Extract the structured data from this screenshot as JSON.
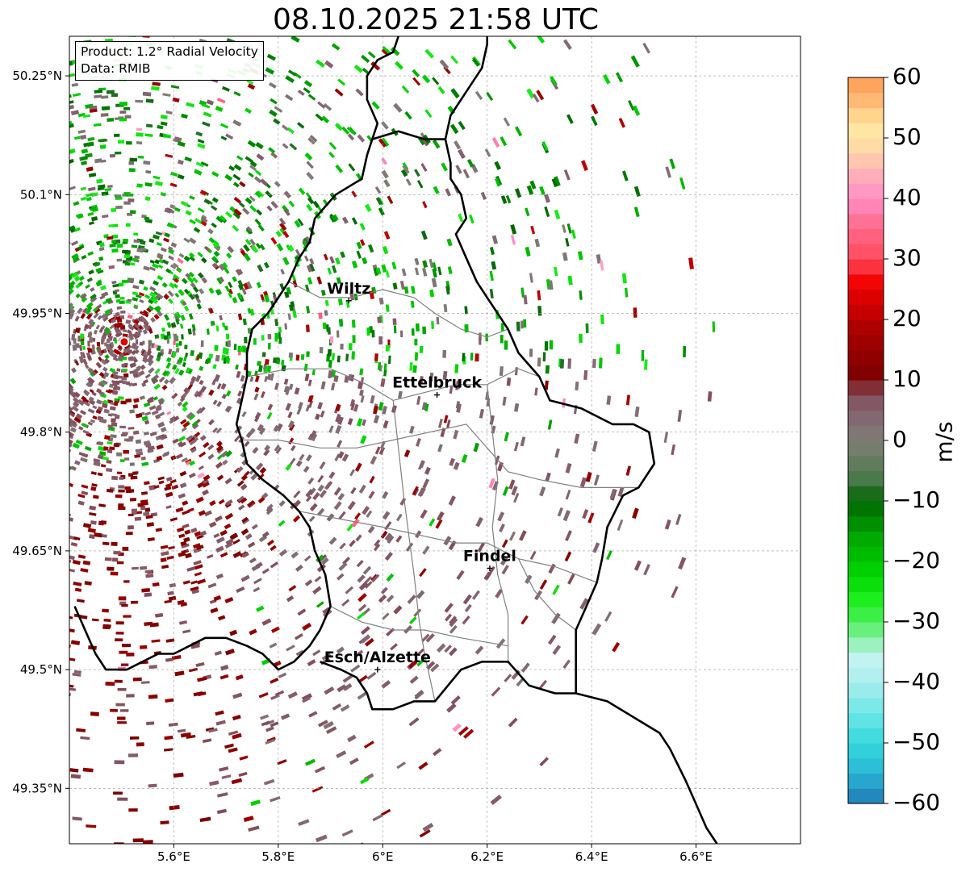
{
  "title": "08.10.2025 21:58 UTC",
  "info_box": {
    "line1": "Product: 1.2° Radial Velocity",
    "line2": "Data: RMIB"
  },
  "map_extent": {
    "lon_min": 5.4,
    "lon_max": 6.8,
    "lat_min": 49.28,
    "lat_max": 50.3
  },
  "axes": {
    "x_ticks": [
      {
        "value": 5.6,
        "label": "5.6°E"
      },
      {
        "value": 5.8,
        "label": "5.8°E"
      },
      {
        "value": 6.0,
        "label": "6°E"
      },
      {
        "value": 6.2,
        "label": "6.2°E"
      },
      {
        "value": 6.4,
        "label": "6.4°E"
      },
      {
        "value": 6.6,
        "label": "6.6°E"
      }
    ],
    "y_ticks": [
      {
        "value": 50.25,
        "label": "50.25°N"
      },
      {
        "value": 50.1,
        "label": "50.1°N"
      },
      {
        "value": 49.95,
        "label": "49.95°N"
      },
      {
        "value": 49.8,
        "label": "49.8°N"
      },
      {
        "value": 49.65,
        "label": "49.65°N"
      },
      {
        "value": 49.5,
        "label": "49.5°N"
      },
      {
        "value": 49.35,
        "label": "49.35°N"
      }
    ],
    "grid": true
  },
  "radar_site": {
    "lon": 5.505,
    "lat": 49.914
  },
  "cities": [
    {
      "name": "Wiltz",
      "lon": 5.935,
      "lat": 49.966
    },
    {
      "name": "Ettelbruck",
      "lon": 6.104,
      "lat": 49.847
    },
    {
      "name": "Findel",
      "lon": 6.205,
      "lat": 49.628
    },
    {
      "name": "Esch/Alzette",
      "lon": 5.99,
      "lat": 49.5
    }
  ],
  "colorbar": {
    "unit": "m/s",
    "min": -60,
    "max": 60,
    "ticks": [
      {
        "value": 60,
        "label": "60"
      },
      {
        "value": 50,
        "label": "50"
      },
      {
        "value": 40,
        "label": "40"
      },
      {
        "value": 30,
        "label": "30"
      },
      {
        "value": 20,
        "label": "20"
      },
      {
        "value": 10,
        "label": "10"
      },
      {
        "value": 0,
        "label": "0"
      },
      {
        "value": -10,
        "label": "−10"
      },
      {
        "value": -20,
        "label": "−20"
      },
      {
        "value": -30,
        "label": "−30"
      },
      {
        "value": -40,
        "label": "−40"
      },
      {
        "value": -50,
        "label": "−50"
      },
      {
        "value": -60,
        "label": "−60"
      }
    ],
    "stops": [
      {
        "value": -60,
        "color": "#1f78b4"
      },
      {
        "value": -55,
        "color": "#29b6d6"
      },
      {
        "value": -50,
        "color": "#33d9dd"
      },
      {
        "value": -45,
        "color": "#6fe6e6"
      },
      {
        "value": -40,
        "color": "#a8eeee"
      },
      {
        "value": -36,
        "color": "#c4f3f0"
      },
      {
        "value": -33,
        "color": "#8ff0b0"
      },
      {
        "value": -30,
        "color": "#4cef5a"
      },
      {
        "value": -26,
        "color": "#1aee1a"
      },
      {
        "value": -22,
        "color": "#00d400"
      },
      {
        "value": -16,
        "color": "#00a800"
      },
      {
        "value": -10,
        "color": "#006600"
      },
      {
        "value": -6,
        "color": "#4f7a4f"
      },
      {
        "value": 0,
        "color": "#7f7f75"
      },
      {
        "value": 5,
        "color": "#846070"
      },
      {
        "value": 8,
        "color": "#854a55"
      },
      {
        "value": 10,
        "color": "#7a0000"
      },
      {
        "value": 18,
        "color": "#a80000"
      },
      {
        "value": 26,
        "color": "#f20000"
      },
      {
        "value": 30,
        "color": "#ff4a5c"
      },
      {
        "value": 36,
        "color": "#ff6f92"
      },
      {
        "value": 40,
        "color": "#ff8fc8"
      },
      {
        "value": 44,
        "color": "#ffb0b8"
      },
      {
        "value": 48,
        "color": "#ffd8a8"
      },
      {
        "value": 52,
        "color": "#ffe9a0"
      },
      {
        "value": 56,
        "color": "#ffbb77"
      },
      {
        "value": 60,
        "color": "#ff9a50"
      }
    ]
  },
  "boundaries": {
    "country_border": [
      [
        6.03,
        50.3
      ],
      [
        6.02,
        50.28
      ],
      [
        5.99,
        50.27
      ],
      [
        5.97,
        50.25
      ],
      [
        5.97,
        50.22
      ],
      [
        5.99,
        50.19
      ],
      [
        5.98,
        50.17
      ],
      [
        5.97,
        50.15
      ],
      [
        5.96,
        50.12
      ],
      [
        5.91,
        50.1
      ],
      [
        5.87,
        50.07
      ],
      [
        5.86,
        50.04
      ],
      [
        5.84,
        50.02
      ],
      [
        5.82,
        49.99
      ],
      [
        5.8,
        49.97
      ],
      [
        5.78,
        49.95
      ],
      [
        5.75,
        49.93
      ],
      [
        5.74,
        49.9
      ],
      [
        5.74,
        49.87
      ],
      [
        5.73,
        49.84
      ],
      [
        5.72,
        49.81
      ],
      [
        5.73,
        49.79
      ],
      [
        5.74,
        49.76
      ],
      [
        5.77,
        49.74
      ],
      [
        5.81,
        49.72
      ],
      [
        5.84,
        49.7
      ],
      [
        5.86,
        49.68
      ],
      [
        5.87,
        49.65
      ],
      [
        5.89,
        49.62
      ],
      [
        5.9,
        49.58
      ],
      [
        5.88,
        49.55
      ],
      [
        5.86,
        49.53
      ],
      [
        5.83,
        49.51
      ],
      [
        5.8,
        49.5
      ],
      [
        5.77,
        49.52
      ],
      [
        5.74,
        49.53
      ],
      [
        5.7,
        49.54
      ],
      [
        5.66,
        49.54
      ],
      [
        5.63,
        49.53
      ],
      [
        5.6,
        49.52
      ],
      [
        5.57,
        49.52
      ],
      [
        5.54,
        49.51
      ],
      [
        5.51,
        49.5
      ],
      [
        5.47,
        49.5
      ],
      [
        5.45,
        49.52
      ],
      [
        5.43,
        49.55
      ],
      [
        5.41,
        49.58
      ]
    ],
    "lux_east_border": [
      [
        5.98,
        50.17
      ],
      [
        6.03,
        50.18
      ],
      [
        6.08,
        50.17
      ],
      [
        6.12,
        50.17
      ],
      [
        6.13,
        50.14
      ],
      [
        6.13,
        50.12
      ],
      [
        6.15,
        50.1
      ],
      [
        6.16,
        50.07
      ],
      [
        6.14,
        50.05
      ],
      [
        6.16,
        50.02
      ],
      [
        6.18,
        49.99
      ],
      [
        6.2,
        49.97
      ],
      [
        6.22,
        49.95
      ],
      [
        6.24,
        49.93
      ],
      [
        6.26,
        49.9
      ],
      [
        6.3,
        49.87
      ],
      [
        6.32,
        49.84
      ],
      [
        6.38,
        49.83
      ],
      [
        6.44,
        49.81
      ],
      [
        6.48,
        49.81
      ],
      [
        6.51,
        49.8
      ],
      [
        6.52,
        49.76
      ],
      [
        6.49,
        49.73
      ],
      [
        6.46,
        49.72
      ],
      [
        6.43,
        49.68
      ],
      [
        6.42,
        49.64
      ],
      [
        6.41,
        49.61
      ],
      [
        6.39,
        49.58
      ],
      [
        6.37,
        49.55
      ],
      [
        6.37,
        49.52
      ],
      [
        6.37,
        49.47
      ],
      [
        6.33,
        49.47
      ],
      [
        6.28,
        49.48
      ],
      [
        6.24,
        49.51
      ],
      [
        6.19,
        49.51
      ],
      [
        6.15,
        49.5
      ],
      [
        6.1,
        49.46
      ],
      [
        6.06,
        49.46
      ],
      [
        6.02,
        49.45
      ],
      [
        5.98,
        49.45
      ],
      [
        5.97,
        49.47
      ],
      [
        5.95,
        49.49
      ],
      [
        5.92,
        49.5
      ],
      [
        5.88,
        49.51
      ]
    ],
    "de_fr_border": [
      [
        6.37,
        49.47
      ],
      [
        6.43,
        49.46
      ],
      [
        6.48,
        49.44
      ],
      [
        6.53,
        49.42
      ],
      [
        6.55,
        49.4
      ],
      [
        6.58,
        49.36
      ],
      [
        6.6,
        49.33
      ],
      [
        6.62,
        49.3
      ],
      [
        6.64,
        49.28
      ]
    ],
    "upper_border": [
      [
        6.12,
        50.17
      ],
      [
        6.13,
        50.2
      ],
      [
        6.16,
        50.23
      ],
      [
        6.19,
        50.26
      ],
      [
        6.2,
        50.29
      ],
      [
        6.2,
        50.3
      ]
    ],
    "cantons": [
      [
        [
          5.82,
          49.99
        ],
        [
          5.88,
          49.97
        ],
        [
          5.94,
          49.97
        ],
        [
          6.0,
          49.98
        ],
        [
          6.06,
          49.97
        ],
        [
          6.1,
          49.95
        ],
        [
          6.15,
          49.93
        ],
        [
          6.2,
          49.92
        ],
        [
          6.24,
          49.93
        ]
      ],
      [
        [
          5.74,
          49.87
        ],
        [
          5.82,
          49.88
        ],
        [
          5.9,
          49.88
        ],
        [
          5.97,
          49.86
        ],
        [
          6.02,
          49.84
        ],
        [
          6.08,
          49.85
        ],
        [
          6.14,
          49.86
        ],
        [
          6.2,
          49.86
        ],
        [
          6.26,
          49.88
        ],
        [
          6.3,
          49.87
        ]
      ],
      [
        [
          5.73,
          49.79
        ],
        [
          5.8,
          49.79
        ],
        [
          5.88,
          49.78
        ],
        [
          5.95,
          49.78
        ],
        [
          6.02,
          49.79
        ],
        [
          6.09,
          49.8
        ],
        [
          6.16,
          49.81
        ],
        [
          6.2,
          49.78
        ],
        [
          6.24,
          49.75
        ],
        [
          6.3,
          49.74
        ],
        [
          6.38,
          49.73
        ],
        [
          6.44,
          49.73
        ],
        [
          6.49,
          49.73
        ]
      ],
      [
        [
          5.84,
          49.7
        ],
        [
          5.92,
          49.69
        ],
        [
          6.0,
          49.68
        ],
        [
          6.07,
          49.67
        ],
        [
          6.14,
          49.66
        ],
        [
          6.2,
          49.66
        ],
        [
          6.26,
          49.64
        ],
        [
          6.33,
          49.63
        ],
        [
          6.41,
          49.61
        ]
      ],
      [
        [
          6.02,
          49.84
        ],
        [
          6.03,
          49.78
        ],
        [
          6.04,
          49.72
        ],
        [
          6.05,
          49.67
        ],
        [
          6.06,
          49.62
        ],
        [
          6.07,
          49.56
        ],
        [
          6.08,
          49.52
        ],
        [
          6.1,
          49.46
        ]
      ],
      [
        [
          6.2,
          49.86
        ],
        [
          6.21,
          49.8
        ],
        [
          6.22,
          49.74
        ],
        [
          6.21,
          49.68
        ],
        [
          6.22,
          49.62
        ],
        [
          6.24,
          49.57
        ],
        [
          6.24,
          49.51
        ]
      ],
      [
        [
          6.26,
          49.64
        ],
        [
          6.29,
          49.6
        ],
        [
          6.33,
          49.57
        ],
        [
          6.37,
          49.55
        ]
      ],
      [
        [
          5.9,
          49.58
        ],
        [
          5.96,
          49.56
        ],
        [
          6.02,
          49.55
        ],
        [
          6.08,
          49.55
        ],
        [
          6.15,
          49.54
        ],
        [
          6.24,
          49.53
        ]
      ]
    ]
  }
}
